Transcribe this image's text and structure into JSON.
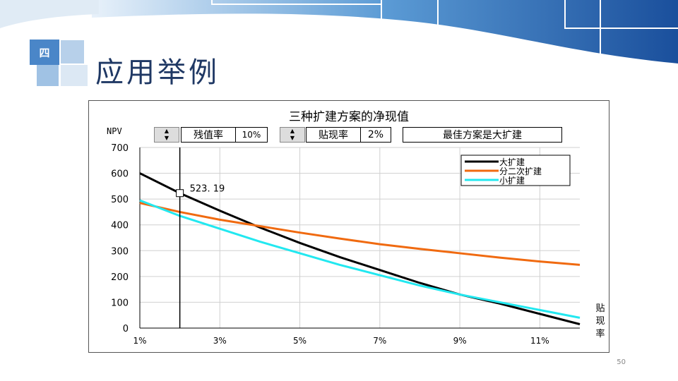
{
  "section_number": "四",
  "slide_title": "应用举例",
  "page_number": "50",
  "controls": {
    "residual_label": "残值率",
    "residual_value": "10%",
    "discount_label": "贴现率",
    "discount_value": "2%",
    "best_plan": "最佳方案是大扩建"
  },
  "colors": {
    "large": "#000000",
    "staged": "#f06a10",
    "small": "#22e8f0"
  },
  "chart_data": {
    "type": "line",
    "title": "三种扩建方案的净现值",
    "ylabel": "NPV",
    "xlabel": "贴现率",
    "xlabel_chars": [
      "贴",
      "现",
      "率"
    ],
    "x": [
      1,
      2,
      3,
      4,
      5,
      6,
      7,
      8,
      9,
      10,
      11,
      12
    ],
    "xlim": [
      1,
      12
    ],
    "ylim": [
      0,
      700
    ],
    "xticks": [
      "1%",
      "3%",
      "5%",
      "7%",
      "9%",
      "11%"
    ],
    "yticks": [
      "0",
      "100",
      "200",
      "300",
      "400",
      "500",
      "600",
      "700"
    ],
    "grid": true,
    "legend": "top-right",
    "series": [
      {
        "name": "大扩建",
        "values": [
          600,
          523,
          455,
          390,
          330,
          275,
          225,
          175,
          130,
          95,
          55,
          15
        ]
      },
      {
        "name": "分二次扩建",
        "values": [
          485,
          450,
          420,
          395,
          370,
          347,
          325,
          307,
          290,
          273,
          258,
          245
        ]
      },
      {
        "name": "小扩建",
        "values": [
          495,
          435,
          385,
          335,
          290,
          245,
          205,
          165,
          130,
          100,
          70,
          40
        ]
      }
    ],
    "marker": {
      "x": 2,
      "label": "523. 19"
    }
  }
}
